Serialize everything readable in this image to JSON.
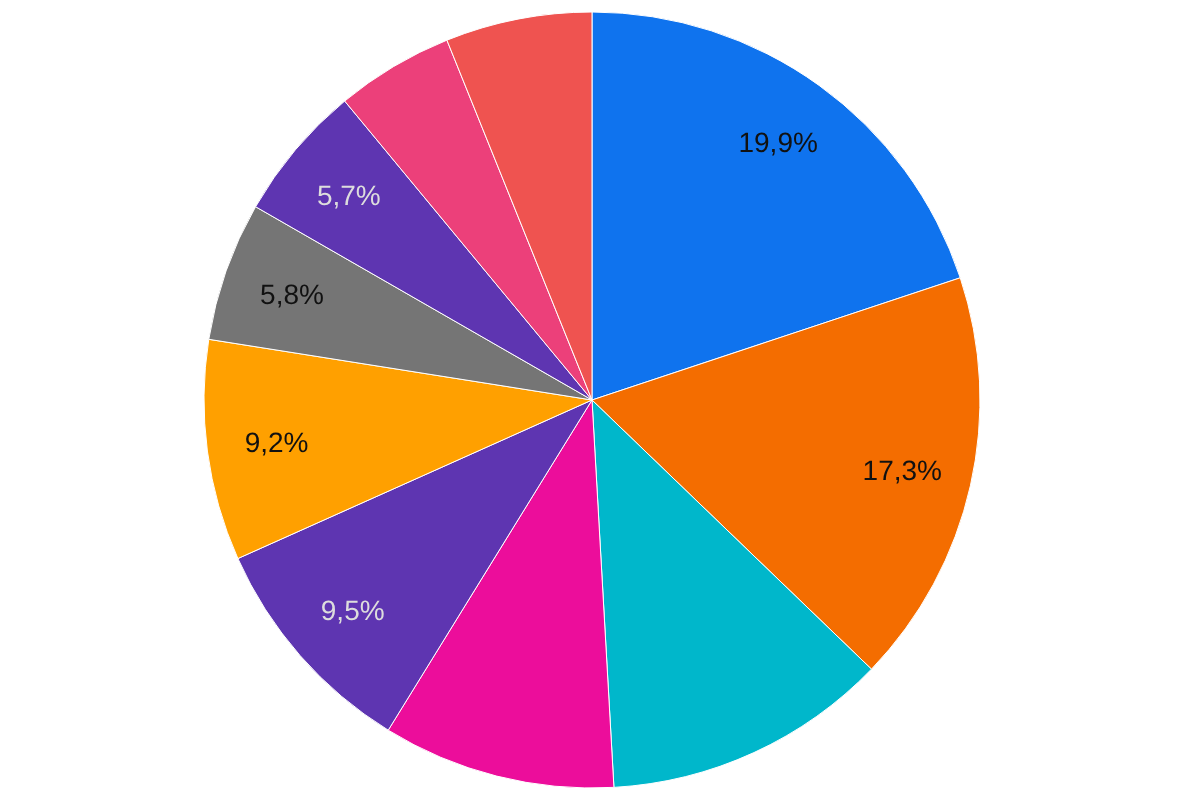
{
  "chart_data": {
    "type": "pie",
    "categories": [
      null,
      null,
      null,
      null,
      null,
      null,
      null,
      null,
      null,
      null
    ],
    "values": [
      19.9,
      17.3,
      11.9,
      9.7,
      9.5,
      9.2,
      5.8,
      5.7,
      4.9,
      6.1
    ],
    "colors": [
      "#0f73ee",
      "#f46d00",
      "#00b7cb",
      "#ec0d9b",
      "#5e35b1",
      "#ffa000",
      "#757575",
      "#5e35b1",
      "#ec407a",
      "#ef5350"
    ],
    "value_labels": [
      "19,9%",
      "17,3%",
      null,
      null,
      "9,5%",
      "9,2%",
      "5,8%",
      "5,7%",
      null,
      null
    ]
  }
}
